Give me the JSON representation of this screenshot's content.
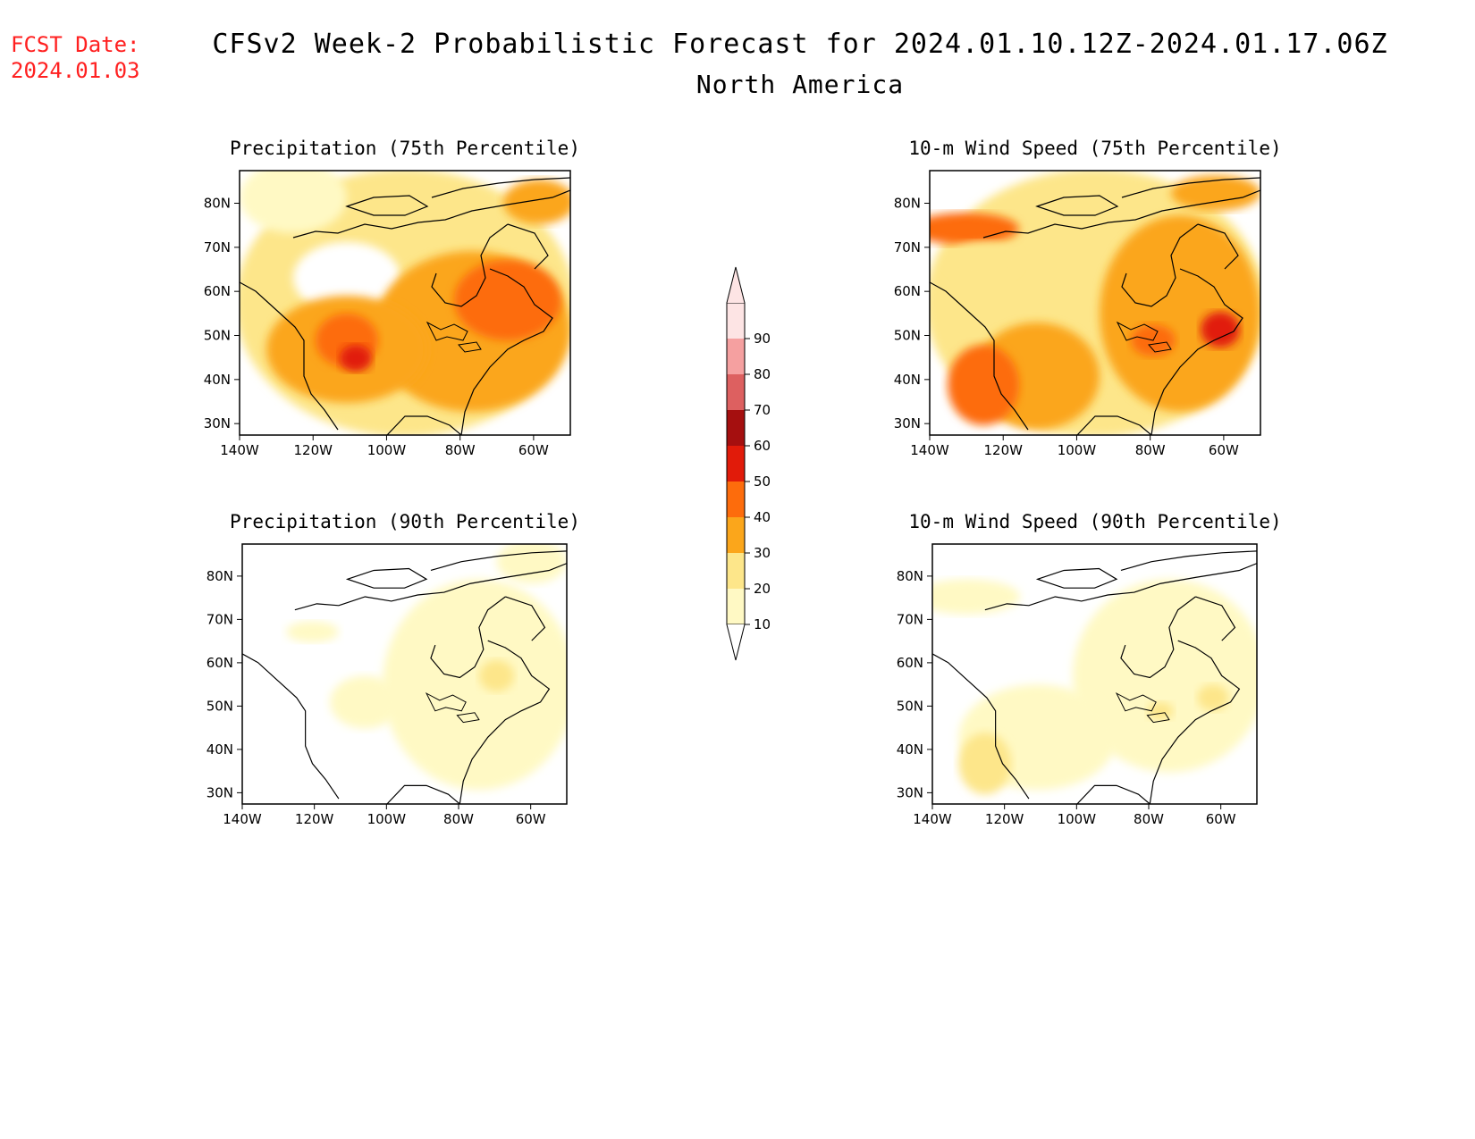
{
  "header": {
    "fcst_label": "FCST Date:",
    "fcst_date": "2024.01.03",
    "title": "CFSv2 Week-2 Probabilistic Forecast for 2024.01.10.12Z-2024.01.17.06Z",
    "region": "North America"
  },
  "axes": {
    "lat_labels": [
      "80N",
      "70N",
      "60N",
      "50N",
      "40N",
      "30N"
    ],
    "lon_labels": [
      "140W",
      "120W",
      "100W",
      "80W",
      "60W"
    ]
  },
  "colorbar": {
    "levels": [
      "10",
      "20",
      "30",
      "40",
      "50",
      "60",
      "70",
      "80",
      "90"
    ],
    "colors": [
      "#fff9c4",
      "#fde68a",
      "#fba61b",
      "#fd6c0c",
      "#e11b0a",
      "#a50f0f",
      "#dd6060",
      "#f5a0a0",
      "#fde4e4"
    ]
  },
  "panels": [
    {
      "title": "Precipitation (75th Percentile)",
      "variable": "precipitation",
      "percentile": "75th"
    },
    {
      "title": "10-m Wind Speed (75th Percentile)",
      "variable": "wind",
      "percentile": "75th"
    },
    {
      "title": "Precipitation (90th Percentile)",
      "variable": "precipitation",
      "percentile": "90th"
    },
    {
      "title": "10-m Wind Speed (90th Percentile)",
      "variable": "wind",
      "percentile": "90th"
    }
  ]
}
